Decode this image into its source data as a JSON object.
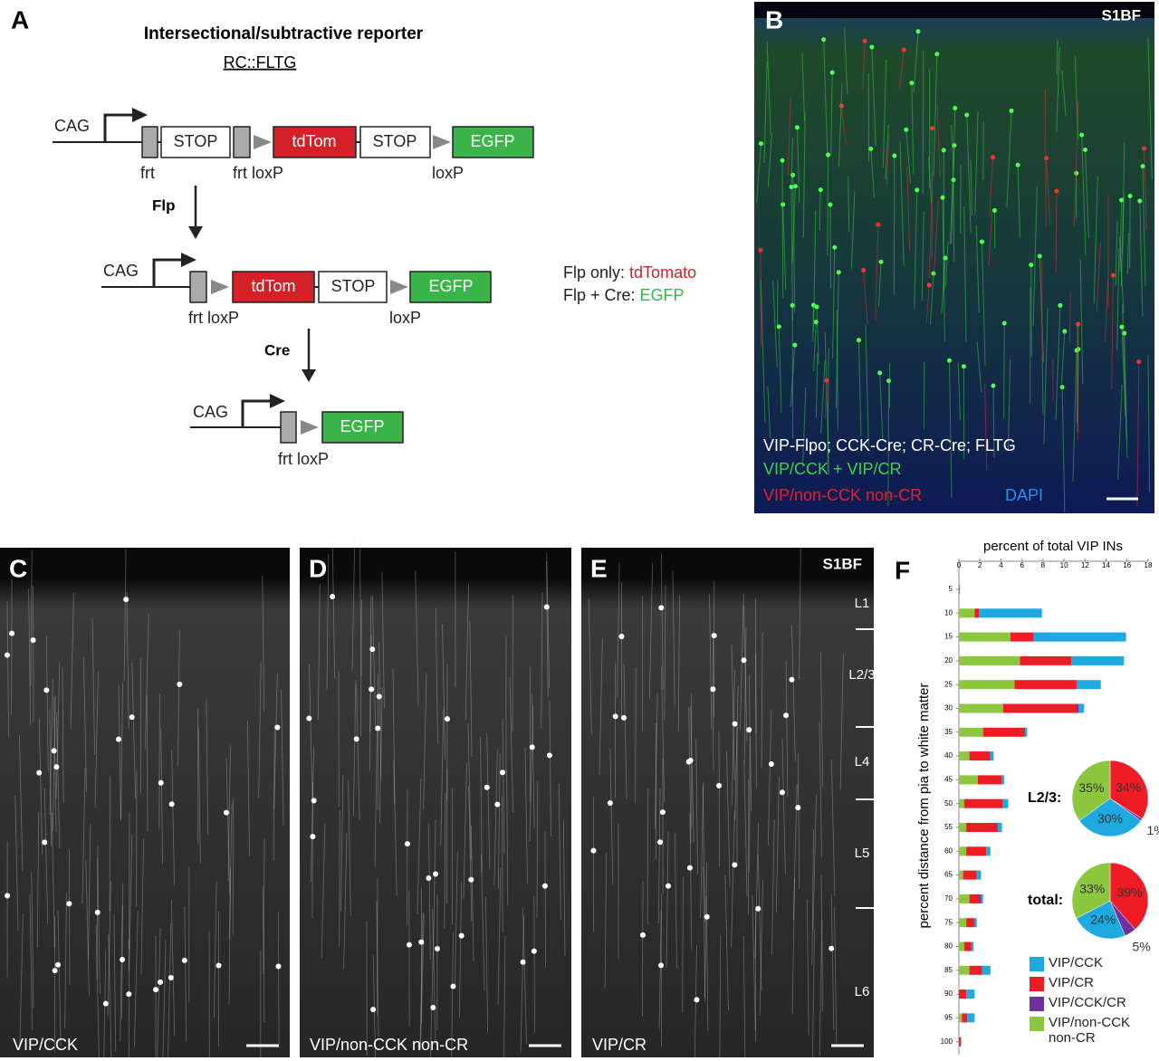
{
  "panel_a": {
    "label": "A",
    "title": "Intersectional/subtractive reporter",
    "subtitle": "RC::FLTG",
    "constructs": [
      {
        "promoter": "CAG",
        "elements": [
          "STOP",
          "tdTom",
          "STOP",
          "EGFP"
        ],
        "sites": [
          "frt",
          "frt loxP",
          "loxP"
        ]
      },
      {
        "promoter": "CAG",
        "elements": [
          "tdTom",
          "STOP",
          "EGFP"
        ],
        "sites": [
          "frt loxP",
          "loxP"
        ]
      },
      {
        "promoter": "CAG",
        "elements": [
          "EGFP"
        ],
        "sites": [
          "frt loxP"
        ]
      }
    ],
    "recombinases": [
      "Flp",
      "Cre"
    ],
    "legend": [
      {
        "label": "Flp only:",
        "reporter": "tdTomato"
      },
      {
        "label": "Flp + Cre:",
        "reporter": "EGFP"
      }
    ]
  },
  "panel_b": {
    "label": "B",
    "region": "S1BF",
    "genotype": "VIP-Flpo; CCK-Cre; CR-Cre; FLTG",
    "green_label": "VIP/CCK + VIP/CR",
    "red_label": "VIP/non-CCK non-CR",
    "blue_label": "DAPI"
  },
  "panel_c": {
    "label": "C",
    "caption": "VIP/CCK"
  },
  "panel_d": {
    "label": "D",
    "caption": "VIP/non-CCK non-CR"
  },
  "panel_e": {
    "label": "E",
    "region": "S1BF",
    "caption": "VIP/CR",
    "layers": [
      "L1",
      "L2/3",
      "L4",
      "L5",
      "L6"
    ]
  },
  "panel_f": {
    "label": "F"
  },
  "chart_data": [
    {
      "type": "bar",
      "orientation": "horizontal",
      "stacked": true,
      "x_label": "percent of total VIP INs",
      "y_label": "percent distance from pia to white matter",
      "categories": [
        "5",
        "10",
        "15",
        "20",
        "25",
        "30",
        "35",
        "40",
        "45",
        "50",
        "55",
        "60",
        "65",
        "70",
        "75",
        "80",
        "85",
        "90",
        "95",
        "100"
      ],
      "xlim": [
        0,
        18
      ],
      "xticks": [
        0,
        2,
        4,
        6,
        8,
        10,
        12,
        14,
        16,
        18
      ],
      "series": [
        {
          "name": "VIP/CCK",
          "color": "#1ea9e1",
          "values": [
            0.1,
            6.0,
            8.8,
            5.0,
            2.3,
            0.5,
            0.2,
            0.3,
            0.2,
            0.5,
            0.4,
            0.4,
            0.4,
            0.2,
            0.2,
            0.2,
            0.8,
            0.8,
            0.7,
            0
          ]
        },
        {
          "name": "VIP/CR",
          "color": "#ee1c25",
          "values": [
            0,
            0.4,
            2.2,
            4.9,
            5.9,
            7.0,
            4.0,
            2.0,
            2.3,
            3.7,
            3.0,
            1.9,
            1.3,
            0.9,
            0.8,
            0.7,
            1.2,
            0.7,
            0.5,
            0.2
          ]
        },
        {
          "name": "VIP/CCK/CR",
          "color": "#7030a0",
          "values": [
            0,
            0,
            0,
            0,
            0,
            0.2,
            0,
            0,
            0,
            0,
            0,
            0,
            0,
            0.2,
            0,
            0,
            0,
            0,
            0,
            0
          ]
        },
        {
          "name": "VIP/non-CCK non-CR",
          "color": "#8dc63f",
          "values": [
            0,
            1.5,
            4.9,
            5.8,
            5.3,
            4.2,
            2.3,
            1.0,
            1.8,
            0.5,
            0.7,
            0.7,
            0.4,
            1.0,
            0.7,
            0.5,
            1.0,
            0,
            0.3,
            0
          ]
        }
      ]
    },
    {
      "type": "pie",
      "title": "L2/3:",
      "values": [
        34,
        1,
        30,
        35
      ],
      "value_labels": [
        "34%",
        "1%",
        "30%",
        "35%"
      ],
      "colors": [
        "#ee1c25",
        "#7030a0",
        "#1ea9e1",
        "#8dc63f"
      ]
    },
    {
      "type": "pie",
      "title": "total:",
      "values": [
        39,
        5,
        24,
        33
      ],
      "value_labels": [
        "39%",
        "5%",
        "24%",
        "33%"
      ],
      "colors": [
        "#ee1c25",
        "#7030a0",
        "#1ea9e1",
        "#8dc63f"
      ]
    }
  ]
}
